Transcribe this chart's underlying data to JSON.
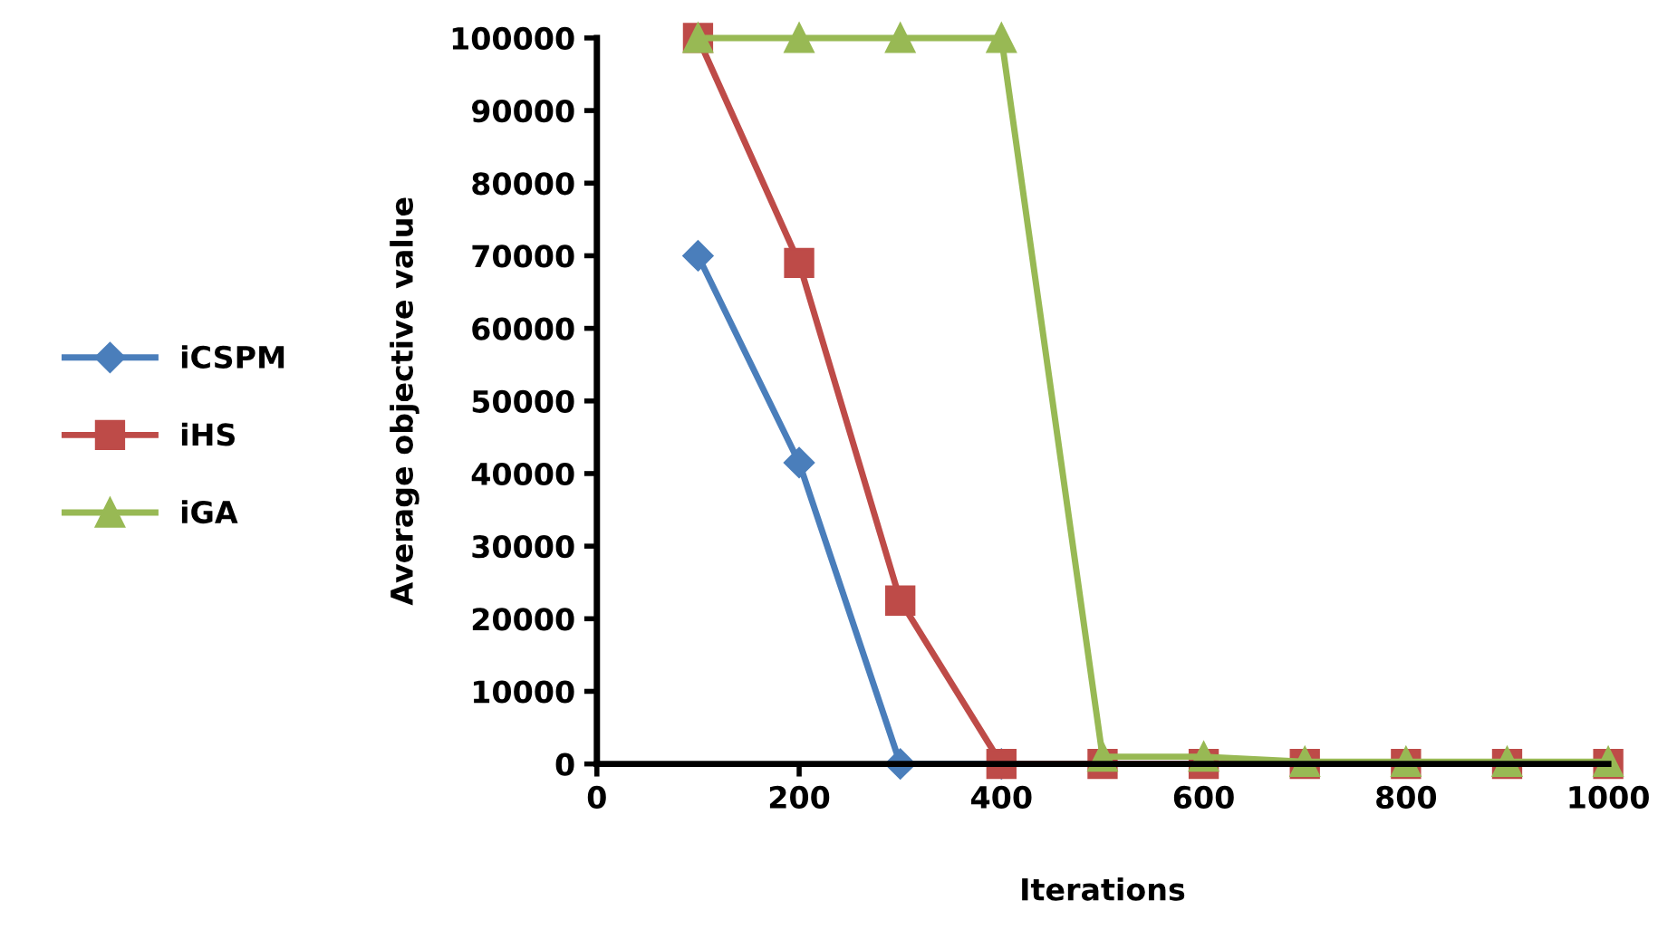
{
  "chart_data": {
    "type": "line",
    "xlabel": "Iterations",
    "ylabel": "Average objective value",
    "x": [
      100,
      200,
      300,
      400,
      500,
      600,
      700,
      800,
      900,
      1000
    ],
    "series": [
      {
        "name": "iCSPM",
        "color": "#4a7ebb",
        "marker": "diamond",
        "values": [
          70000,
          41500,
          0,
          0,
          null,
          null,
          null,
          null,
          null,
          null
        ]
      },
      {
        "name": "iHS",
        "color": "#be4b48",
        "marker": "square",
        "values": [
          100000,
          69000,
          22500,
          0,
          0,
          0,
          0,
          0,
          0,
          0
        ]
      },
      {
        "name": "iGA",
        "color": "#98b954",
        "marker": "triangle",
        "values": [
          100000,
          100000,
          100000,
          100000,
          1000,
          1000,
          300,
          300,
          300,
          300
        ]
      }
    ],
    "xlim": [
      0,
      1000
    ],
    "xticks": [
      0,
      200,
      400,
      600,
      800,
      1000
    ],
    "ylim": [
      0,
      100000
    ],
    "yticks": [
      0,
      10000,
      20000,
      30000,
      40000,
      50000,
      60000,
      70000,
      80000,
      90000,
      100000
    ],
    "grid": false,
    "legend": "left"
  }
}
